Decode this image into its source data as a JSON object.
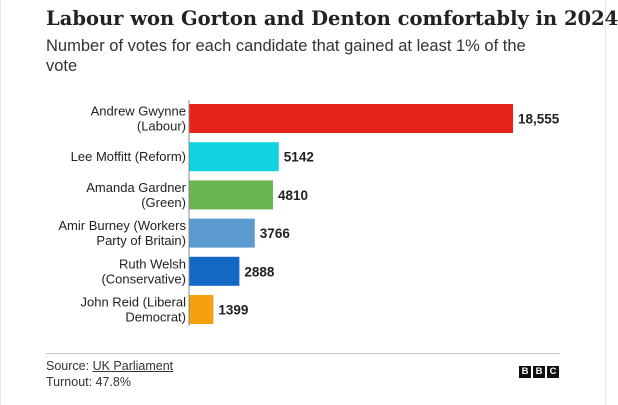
{
  "chart_data": {
    "type": "bar",
    "orientation": "horizontal",
    "title": "Labour won Gorton and Denton comfortably in 2024",
    "subtitle": "Number of votes for each candidate that gained at least 1% of the vote",
    "categories": [
      [
        "Andrew Gwynne",
        "(Labour)"
      ],
      [
        "Lee Moffitt (Reform)"
      ],
      [
        "Amanda Gardner",
        "(Green)"
      ],
      [
        "Amir Burney (Workers",
        "Party of Britain)"
      ],
      [
        "Ruth Welsh",
        "(Conservative)"
      ],
      [
        "John Reid (Liberal",
        "Democrat)"
      ]
    ],
    "values": [
      18555,
      5142,
      4810,
      3766,
      2888,
      1399
    ],
    "value_labels": [
      "18,555",
      "5142",
      "4810",
      "3766",
      "2888",
      "1399"
    ],
    "colors": [
      "#e4231b",
      "#12d2e0",
      "#6ab552",
      "#5b9bd0",
      "#1269c4",
      "#f5a00f"
    ],
    "xlim": [
      0,
      18555
    ],
    "xlabel": "",
    "ylabel": "",
    "grid": false
  },
  "footer": {
    "source_prefix": "Source: ",
    "source_link": "UK Parliament",
    "turnout": "Turnout: 47.8%"
  },
  "logo": {
    "letters": [
      "B",
      "B",
      "C"
    ]
  }
}
